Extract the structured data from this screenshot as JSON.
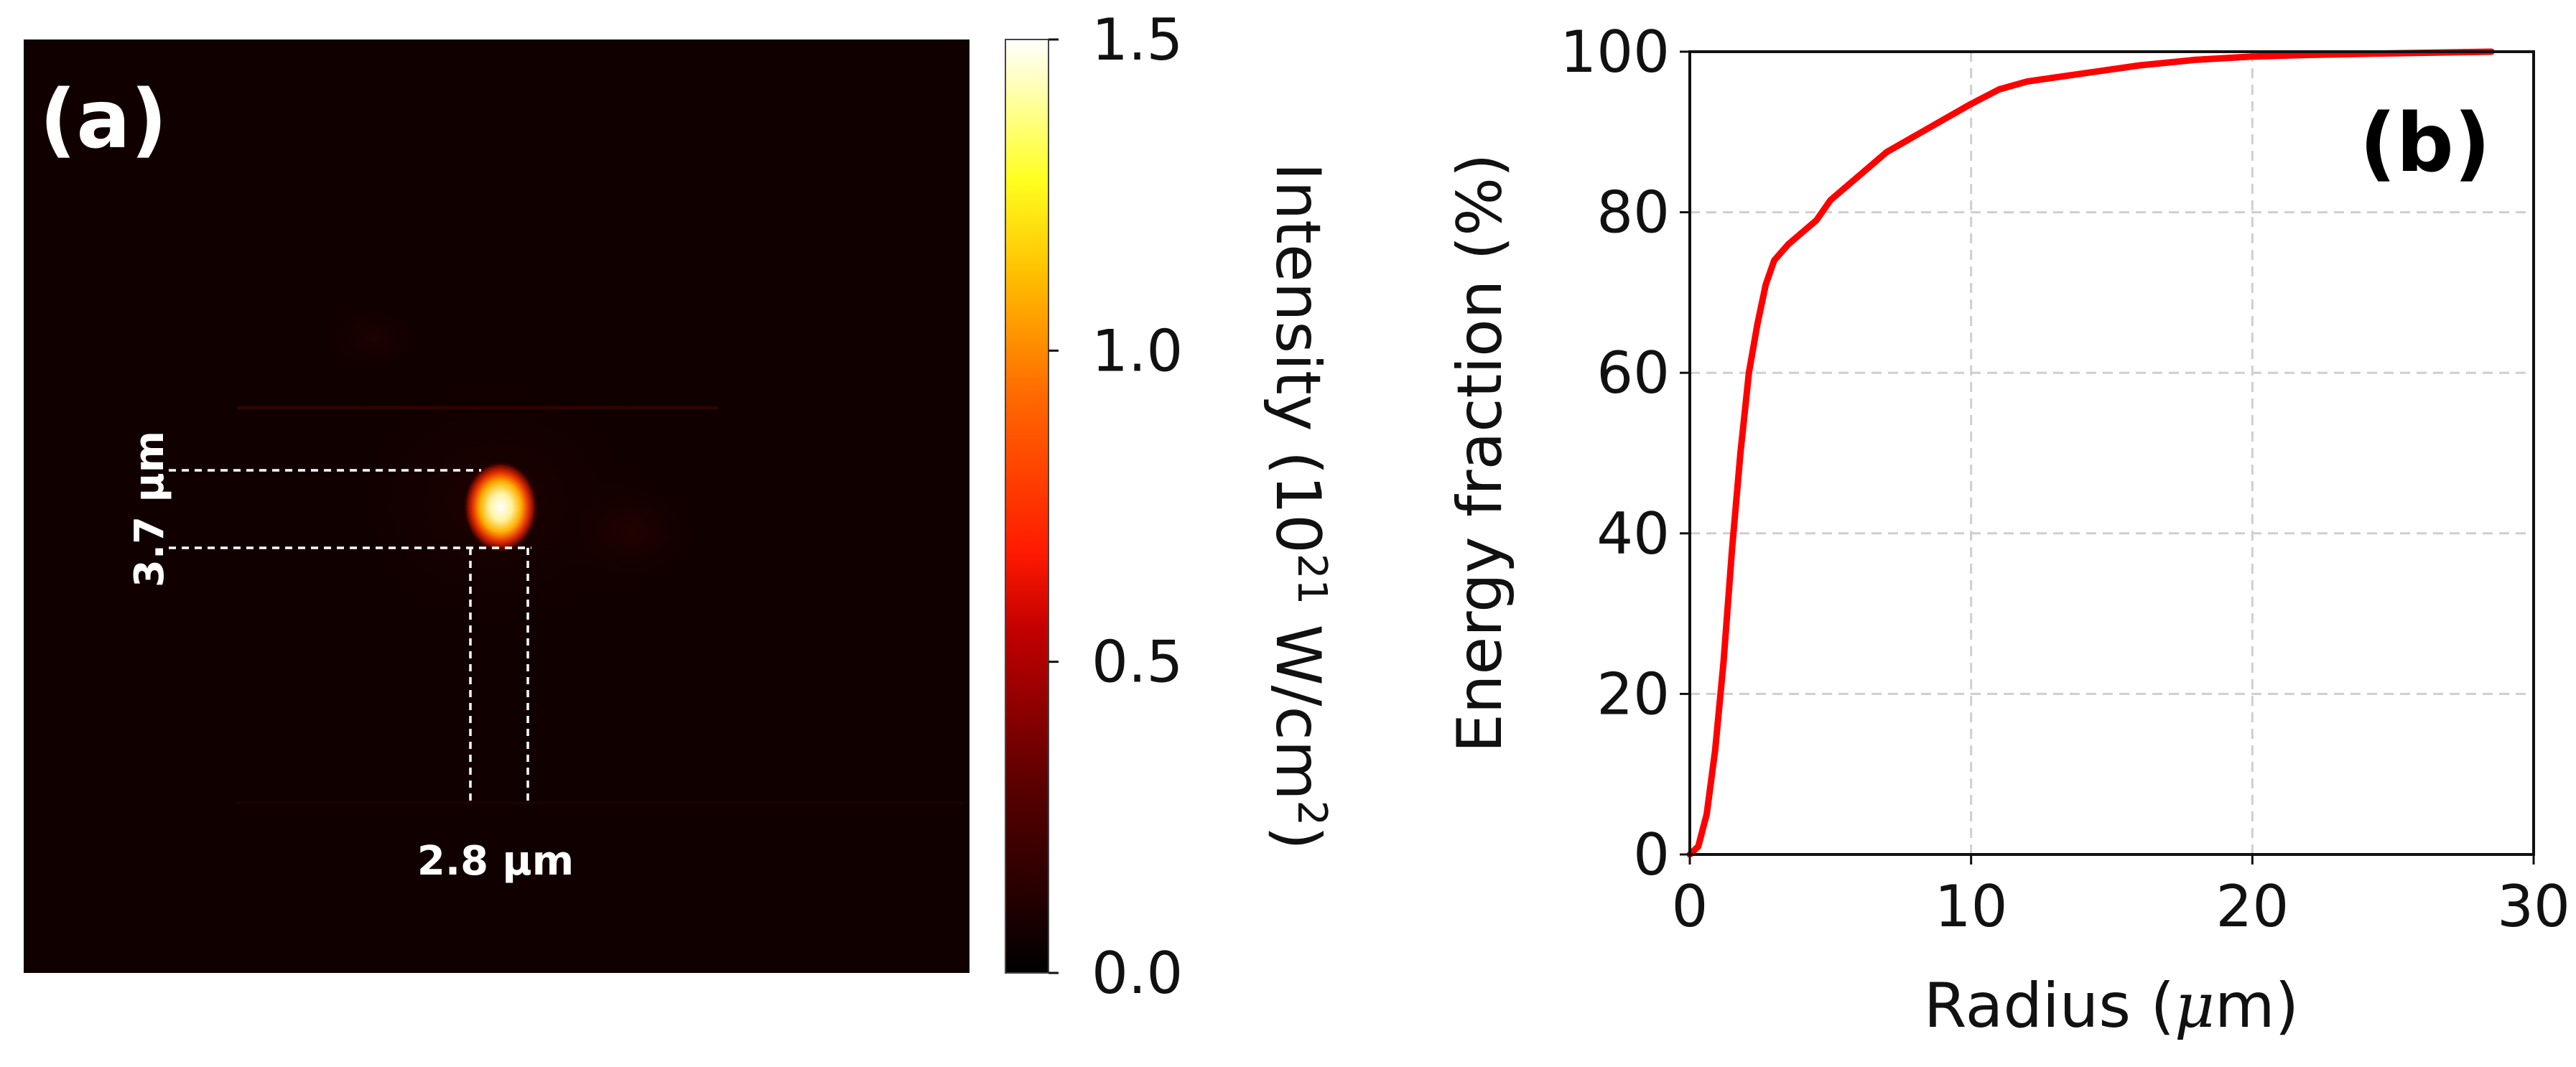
{
  "chart_data": [
    {
      "panel": "(a)",
      "type": "heatmap",
      "colormap": "hot",
      "colorbar": {
        "label_main": "Intensity (10",
        "label_sup": "21",
        "label_mid": " W/cm",
        "label_sup2": "2",
        "label_end": ")",
        "range": [
          0.0,
          1.5
        ],
        "ticks": [
          "0.0",
          "0.5",
          "1.0",
          "1.5"
        ]
      },
      "spot": {
        "peak_intensity": 1.5,
        "width_label": "2.8 μm",
        "height_label": "3.7 μm"
      }
    },
    {
      "panel": "(b)",
      "type": "line",
      "xlabel_pre": "Radius (",
      "xlabel_mu": "μ",
      "xlabel_post": "m)",
      "ylabel": "Energy fraction (%)",
      "xlim": [
        0,
        30
      ],
      "ylim": [
        0,
        100
      ],
      "xticks": [
        "0",
        "10",
        "20",
        "30"
      ],
      "yticks": [
        "0",
        "20",
        "40",
        "60",
        "80",
        "100"
      ],
      "grid": true,
      "series": [
        {
          "color": "#ff0000",
          "x": [
            0,
            0.3,
            0.6,
            0.9,
            1.2,
            1.5,
            1.8,
            2.1,
            2.4,
            2.7,
            3.0,
            3.5,
            4.0,
            4.5,
            5.0,
            6.0,
            7.0,
            8.0,
            9.0,
            10.0,
            11.0,
            12.0,
            14.0,
            16.0,
            18.0,
            20.0,
            22.0,
            25.0,
            28.5
          ],
          "y": [
            0,
            1,
            5,
            13,
            24,
            38,
            50,
            60,
            66,
            71,
            74,
            76,
            77.5,
            79,
            81.5,
            84.5,
            87.5,
            89.5,
            91.5,
            93.5,
            95.3,
            96.3,
            97.3,
            98.3,
            99.0,
            99.4,
            99.6,
            99.8,
            100
          ]
        }
      ]
    }
  ]
}
